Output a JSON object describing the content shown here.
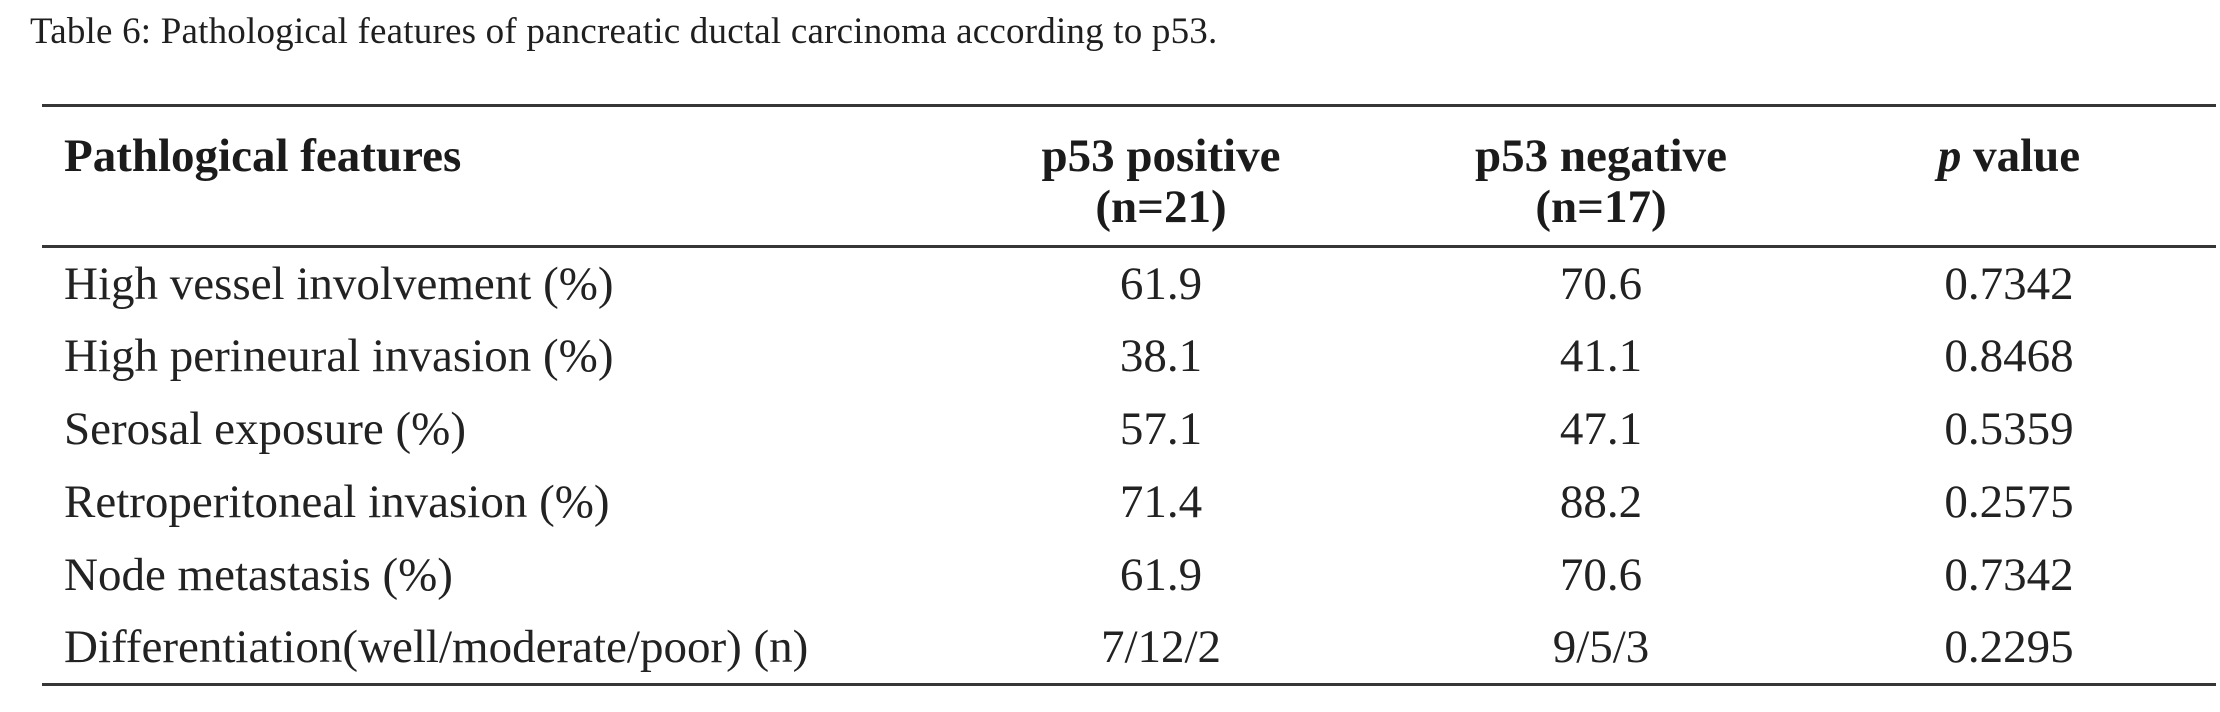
{
  "caption": "Table 6: Pathological features of pancreatic ductal carcinoma according to p53.",
  "table": {
    "columns": {
      "features": {
        "label": "Pathlogical features"
      },
      "p53_positive": {
        "label": "p53 positive",
        "sub": "(n=21)"
      },
      "p53_negative": {
        "label": "p53 negative",
        "sub": "(n=17)"
      },
      "p_value": {
        "italic_part": "p",
        "rest": " value"
      }
    },
    "rows": [
      {
        "feature": "High vessel involvement (%)",
        "pos": "61.9",
        "neg": "70.6",
        "p": "0.7342"
      },
      {
        "feature": "High perineural invasion (%)",
        "pos": "38.1",
        "neg": "41.1",
        "p": "0.8468"
      },
      {
        "feature": "Serosal exposure (%)",
        "pos": "57.1",
        "neg": "47.1",
        "p": "0.5359"
      },
      {
        "feature": "Retroperitoneal invasion (%)",
        "pos": "71.4",
        "neg": "88.2",
        "p": "0.2575"
      },
      {
        "feature": "Node metastasis (%)",
        "pos": "61.9",
        "neg": "70.6",
        "p": "0.7342"
      },
      {
        "feature": "Differentiation(well/moderate/poor) (n)",
        "pos": "7/12/2",
        "neg": "9/5/3",
        "p": "0.2295"
      }
    ]
  },
  "colors": {
    "background": "#ffffff",
    "text": "#212121",
    "rule": "#363636"
  }
}
